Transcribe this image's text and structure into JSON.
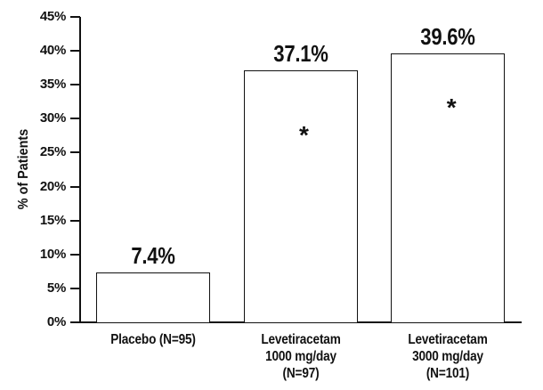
{
  "figure": {
    "background_color": "#ffffff",
    "ink_color": "#111111"
  },
  "chart_data": {
    "type": "bar",
    "title": "",
    "xlabel": "",
    "ylabel": "% of Patients",
    "ylim": [
      0,
      45
    ],
    "ytick_step": 5,
    "ytick_labels": [
      "0%",
      "5%",
      "10%",
      "15%",
      "20%",
      "25%",
      "30%",
      "35%",
      "40%",
      "45%"
    ],
    "grid": false,
    "legend": "none",
    "bar_fill": "#ffffff",
    "bar_border": "#111111",
    "categories": [
      "Placebo (N=95)",
      "Levetiracetam 1000 mg/day (N=97)",
      "Levetiracetam 3000 mg/day (N=101)"
    ],
    "bars": [
      {
        "label_lines": [
          "Placebo (N=95)"
        ],
        "value": 7.4,
        "value_label": "7.4%",
        "significance_marker": "",
        "marker_y_pct": 0
      },
      {
        "label_lines": [
          "Levetiracetam",
          "1000 mg/day",
          "(N=97)"
        ],
        "value": 37.1,
        "value_label": "37.1%",
        "significance_marker": "*",
        "marker_y_pct": 28
      },
      {
        "label_lines": [
          "Levetiracetam",
          "3000 mg/day",
          "(N=101)"
        ],
        "value": 39.6,
        "value_label": "39.6%",
        "significance_marker": "*",
        "marker_y_pct": 32
      }
    ]
  }
}
